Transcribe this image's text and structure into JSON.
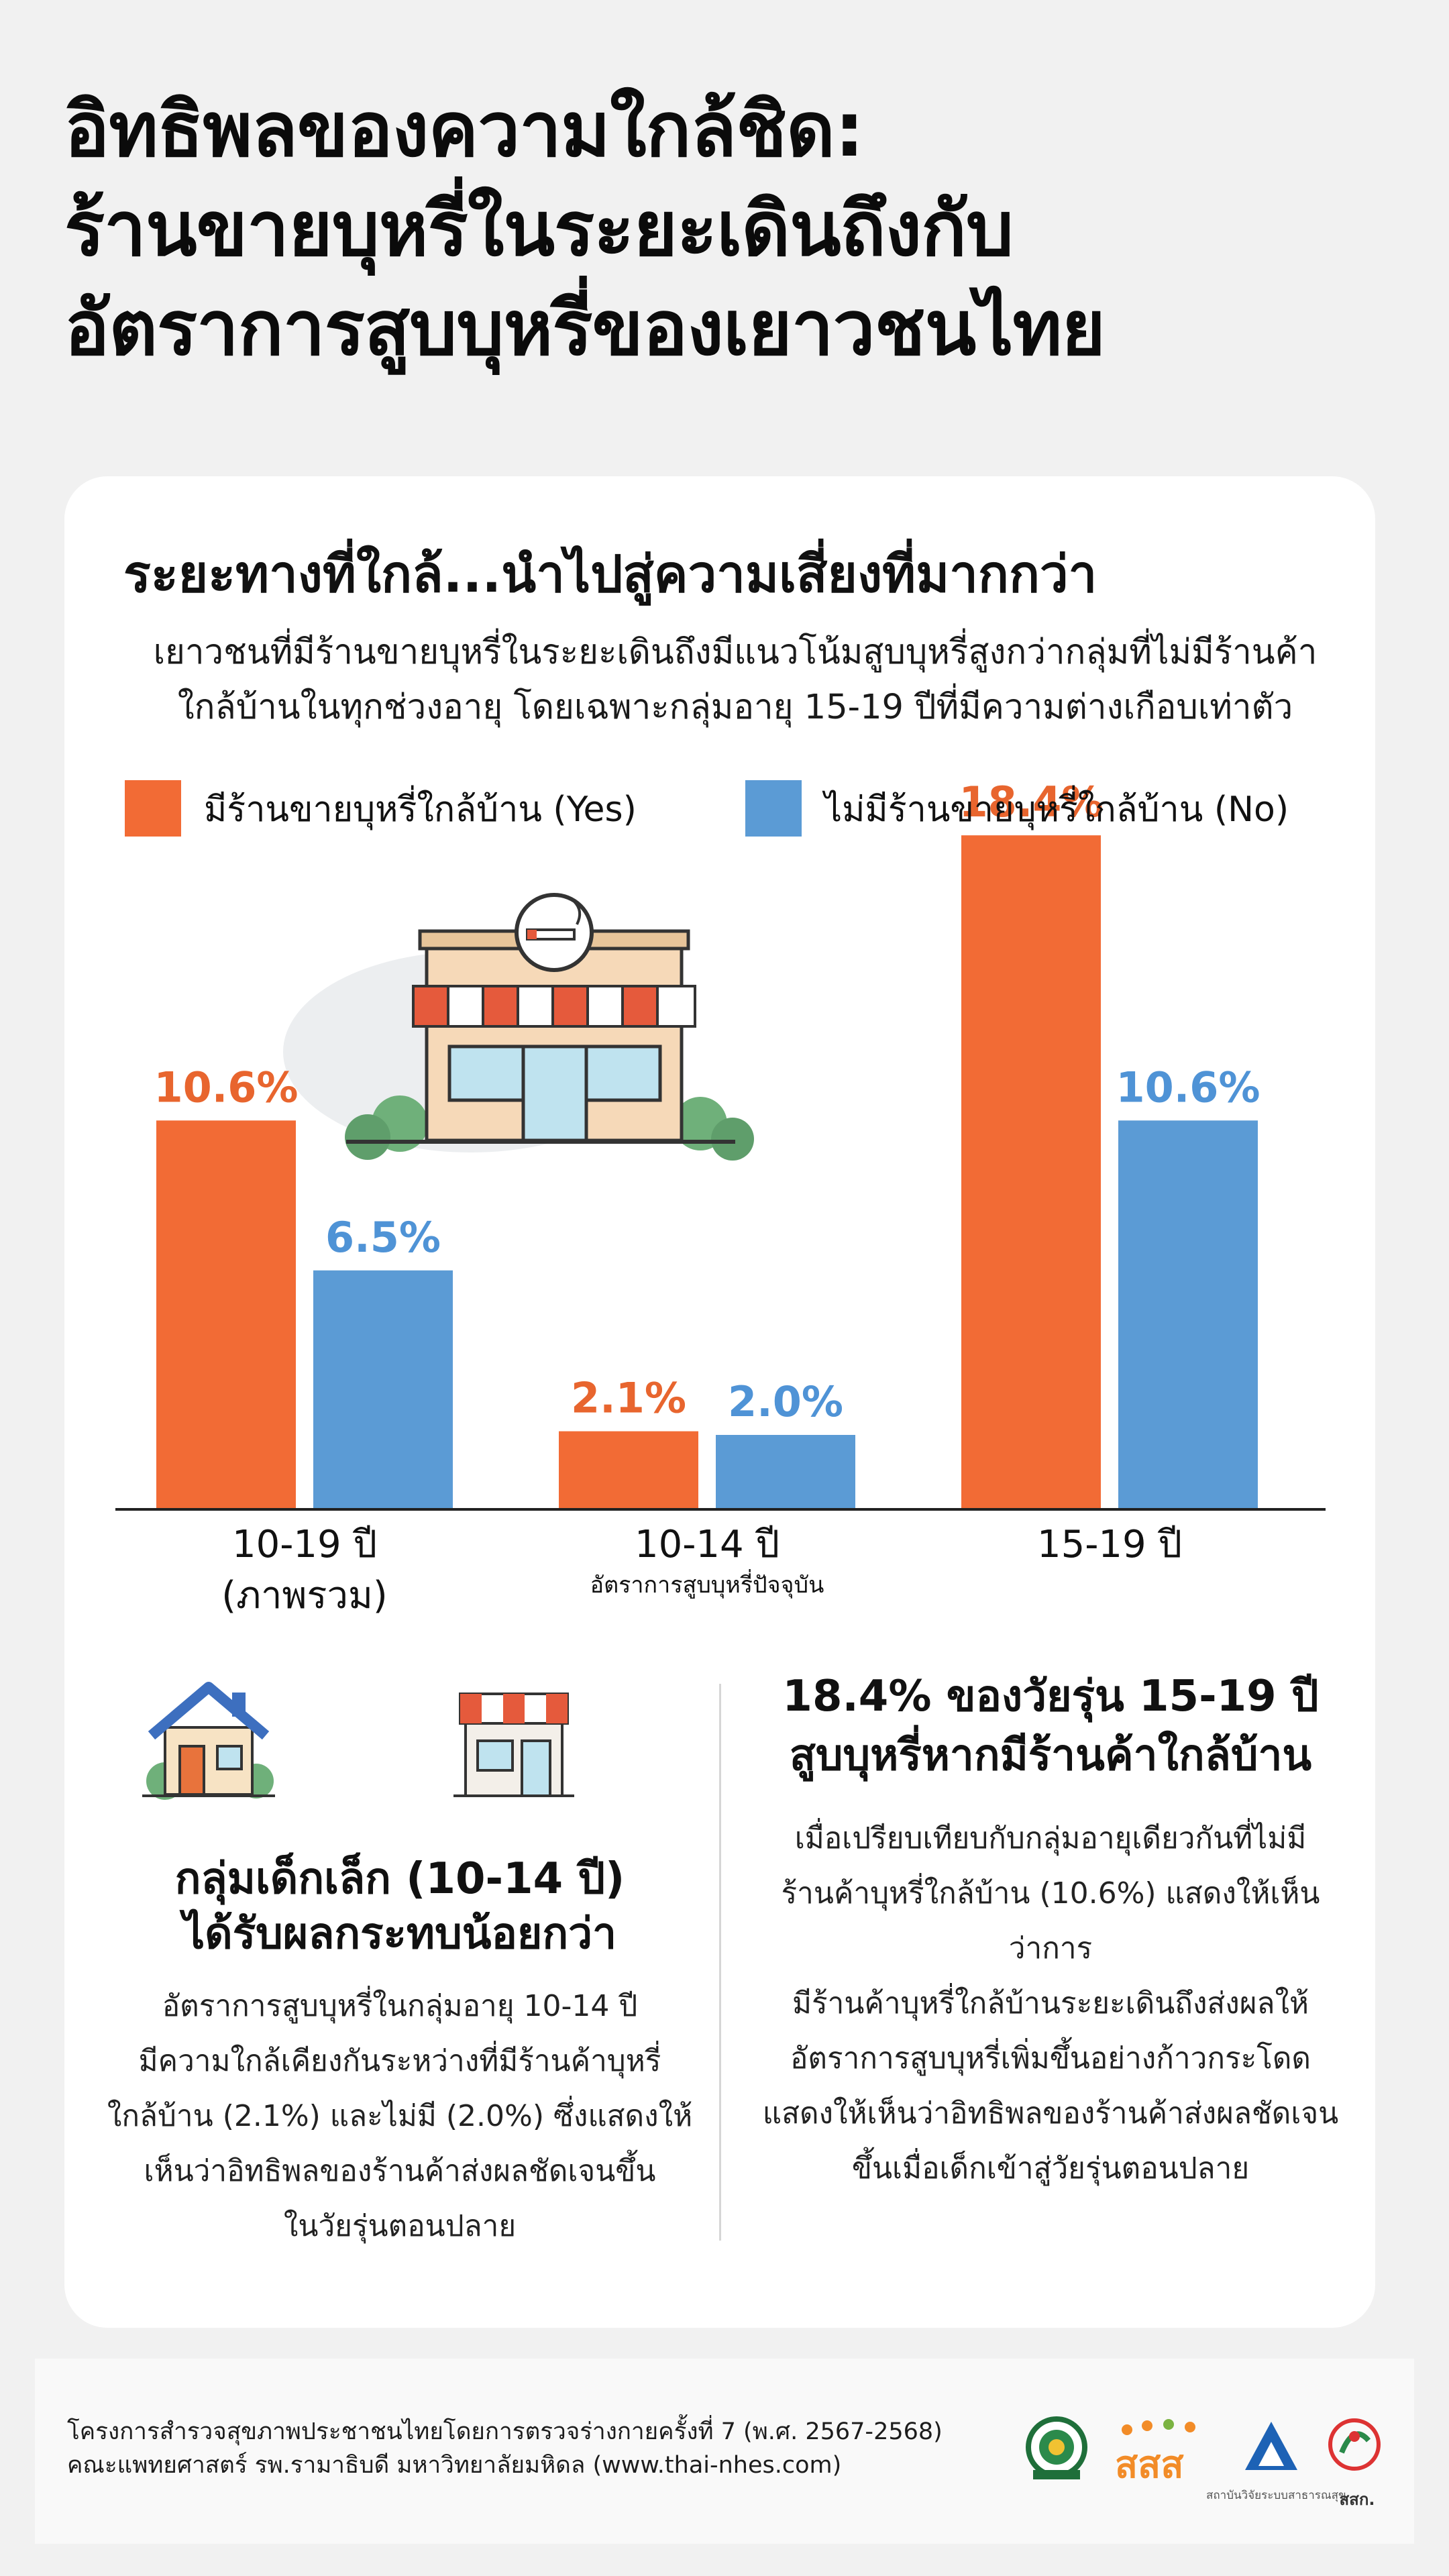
{
  "title": {
    "line1": "อิทธิพลของความใกล้ชิด:",
    "line2": "ร้านขายบุหรี่ในระยะเดินถึงกับ",
    "line3": "อัตราการสูบบุหรี่ของเยาวชนไทย"
  },
  "card": {
    "heading": "ระยะทางที่ใกล้...นำไปสู่ความเสี่ยงที่มากกว่า",
    "subtitle_line1": "เยาวชนที่มีร้านขายบุหรี่ในระยะเดินถึงมีแนวโน้มสูบบุหรี่สูงกว่ากลุ่มที่ไม่มีร้านค้า",
    "subtitle_line2": "ใกล้บ้านในทุกช่วงอายุ โดยเฉพาะกลุ่มอายุ 15-19 ปีที่มีความต่างเกือบเท่าตัว"
  },
  "legend": {
    "yes": "มีร้านขายบุหรี่ใกล้บ้าน (Yes)",
    "no": "ไม่มีร้านขายบุหรี่ใกล้บ้าน (No)"
  },
  "colors": {
    "yes": "#f26b35",
    "no": "#5b9bd5",
    "yes_label": "#e8652e",
    "no_label": "#4f93d6"
  },
  "chart_data": {
    "type": "bar",
    "categories": [
      "10-19 ปี",
      "10-14 ปี",
      "15-19 ปี"
    ],
    "category_sublabels": [
      "(ภาพรวม)",
      "อัตราการสูบบุหรี่ปัจจุบัน",
      ""
    ],
    "series": [
      {
        "name": "มีร้านขายบุหรี่ใกล้บ้าน (Yes)",
        "values": [
          10.6,
          2.1,
          18.4
        ],
        "labels": [
          "10.6%",
          "2.1%",
          "18.4%"
        ]
      },
      {
        "name": "ไม่มีร้านขายบุหรี่ใกล้บ้าน (No)",
        "values": [
          6.5,
          2.0,
          10.6
        ],
        "labels": [
          "6.5%",
          "2.0%",
          "10.6%"
        ]
      }
    ],
    "ylim": [
      0,
      20
    ],
    "grid": false,
    "legend_position": "top"
  },
  "left_panel": {
    "title_line1": "กลุ่มเด็กเล็ก (10-14 ปี)",
    "title_line2": "ได้รับผลกระทบน้อยกว่า",
    "body": [
      "อัตราการสูบบุหรี่ในกลุ่มอายุ 10-14 ปี",
      "มีความใกล้เคียงกันระหว่างที่มีร้านค้าบุหรี่",
      "ใกล้บ้าน (2.1%) และไม่มี (2.0%) ซึ่งแสดงให้",
      "เห็นว่าอิทธิพลของร้านค้าส่งผลชัดเจนขึ้น",
      "ในวัยรุ่นตอนปลาย"
    ]
  },
  "right_panel": {
    "title_line1": "18.4% ของวัยรุ่น 15-19 ปี",
    "title_line2": "สูบบุหรี่หากมีร้านค้าใกล้บ้าน",
    "body": [
      "เมื่อเปรียบเทียบกับกลุ่มอายุเดียวกันที่ไม่มี",
      "ร้านค้าบุหรี่ใกล้บ้าน (10.6%) แสดงให้เห็นว่าการ",
      "มีร้านค้าบุหรี่ใกล้บ้านระยะเดินถึงส่งผลให้",
      "อัตราการสูบบุหรี่เพิ่มขึ้นอย่างก้าวกระโดด",
      "แสดงให้เห็นว่าอิทธิพลของร้านค้าส่งผลชัดเจน",
      "ขึ้นเมื่อเด็กเข้าสู่วัยรุ่นตอนปลาย"
    ]
  },
  "footer": {
    "line1": "โครงการสำรวจสุขภาพประชาชนไทยโดยการตรวจร่างกายครั้งที่ 7  (พ.ศ. 2567-2568)",
    "line2": "คณะแพทยศาสตร์ รพ.รามาธิบดี มหาวิทยาลัยมหิดล   (www.thai-nhes.com)",
    "logo_sss": "สสส",
    "logo_hsri_label": "สถาบันวิจัยระบบสาธารณสุข",
    "logo_skk": "สสก."
  }
}
